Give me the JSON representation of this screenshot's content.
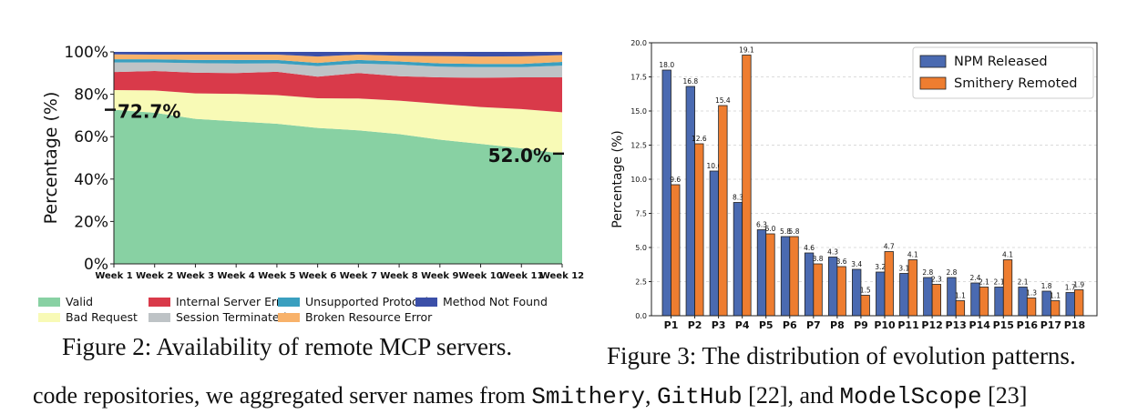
{
  "chart_data": [
    {
      "type": "area",
      "stacked": true,
      "categories": [
        "Week 1",
        "Week 2",
        "Week 3",
        "Week 4",
        "Week 5",
        "Week 6",
        "Week 7",
        "Week 8",
        "Week 9",
        "Week 10",
        "Week 11",
        "Week 12"
      ],
      "series": [
        {
          "name": "Valid",
          "color": "#88d1a3",
          "values": [
            72.7,
            71.3,
            68.4,
            67.2,
            66.1,
            64.1,
            63.0,
            61.2,
            58.6,
            56.6,
            54.5,
            52.0
          ]
        },
        {
          "name": "Bad Request",
          "color": "#f8fab6",
          "values": [
            9.3,
            10.5,
            12.0,
            13.0,
            13.5,
            14.0,
            15.0,
            15.8,
            16.9,
            17.4,
            18.5,
            19.5
          ]
        },
        {
          "name": "Internal Server Error",
          "color": "#d93a4a",
          "values": [
            8.5,
            9.2,
            9.8,
            9.8,
            11.0,
            10.2,
            12.0,
            11.5,
            12.5,
            13.8,
            15.0,
            16.5
          ]
        },
        {
          "name": "Session Terminated",
          "color": "#bec3c6",
          "values": [
            4.5,
            4.0,
            4.5,
            4.5,
            4.0,
            5.0,
            4.5,
            5.5,
            5.0,
            5.0,
            4.8,
            5.5
          ]
        },
        {
          "name": "Unsupported Protocol",
          "color": "#3a9fbf",
          "values": [
            1.5,
            1.5,
            1.5,
            1.7,
            1.6,
            1.5,
            1.7,
            1.5,
            1.6,
            1.5,
            1.5,
            1.8
          ]
        },
        {
          "name": "Broken Resource Error",
          "color": "#f8b26a",
          "values": [
            2.3,
            2.2,
            2.5,
            2.5,
            2.5,
            3.0,
            2.5,
            2.7,
            3.4,
            3.5,
            3.6,
            3.2
          ]
        },
        {
          "name": "Method Not Found",
          "color": "#3b4fa8",
          "values": [
            1.2,
            1.3,
            1.3,
            1.3,
            1.3,
            2.2,
            1.3,
            1.8,
            2.0,
            2.2,
            2.1,
            1.5
          ]
        }
      ],
      "xlabel": "",
      "ylabel": "Percentage (%)",
      "ylim": [
        0,
        100
      ],
      "ytick_labels": [
        "0%",
        "20%",
        "40%",
        "60%",
        "80%",
        "100%"
      ],
      "annotations": [
        {
          "category": "Week 1",
          "value": 72.7,
          "label": "72.7%"
        },
        {
          "category": "Week 12",
          "value": 52.0,
          "label": "52.0%"
        }
      ],
      "legend": "bottom",
      "grid": false
    },
    {
      "type": "bar",
      "categories": [
        "P1",
        "P2",
        "P3",
        "P4",
        "P5",
        "P6",
        "P7",
        "P8",
        "P9",
        "P10",
        "P11",
        "P12",
        "P13",
        "P14",
        "P15",
        "P16",
        "P17",
        "P18"
      ],
      "series": [
        {
          "name": "NPM Released",
          "color": "#4a6ab1",
          "values": [
            18.0,
            16.8,
            10.6,
            8.3,
            6.3,
            5.8,
            4.6,
            4.3,
            3.4,
            3.2,
            3.1,
            2.8,
            2.8,
            2.4,
            2.1,
            2.1,
            1.8,
            1.7
          ]
        },
        {
          "name": "Smithery Remoted",
          "color": "#ee7d30",
          "values": [
            9.6,
            12.6,
            15.4,
            19.1,
            6.0,
            5.8,
            3.8,
            3.6,
            1.5,
            4.7,
            4.1,
            2.3,
            1.1,
            2.1,
            4.1,
            1.3,
            1.1,
            1.9
          ]
        }
      ],
      "data_labels": {
        "NPM Released": [
          "18.0",
          "16.8",
          "10.6",
          "8.3",
          "6.3",
          "5.8",
          "4.6",
          "4.3",
          "3.4",
          "3.2",
          "3.1",
          "2.8",
          "2.8",
          "2.4",
          "2.1",
          "2.1",
          "1.8",
          "1.7"
        ],
        "Smithery Remoted": [
          "9.6",
          "12.6",
          "15.4",
          "19.1",
          "6.0",
          "5.8",
          "3.8",
          "3.6",
          "1.5",
          "4.7",
          "4.1",
          "2.3",
          "1.1",
          "2.1",
          "4.1",
          "1.3",
          "1.1",
          "1.9"
        ]
      },
      "xlabel": "",
      "ylabel": "Percentage (%)",
      "ylim": [
        0,
        20
      ],
      "ytick_labels": [
        "0.0",
        "2.5",
        "5.0",
        "7.5",
        "10.0",
        "12.5",
        "15.0",
        "17.5",
        "20.0"
      ],
      "legend": "top-right",
      "grid": true
    }
  ],
  "captions": {
    "fig2": "Figure 2: Availability of remote MCP servers.",
    "fig3": "Figure 3: The distribution of evolution patterns."
  },
  "body_text": {
    "t1": "code repositories, we aggregated server names from ",
    "c1": "Smithery",
    "t2": ", ",
    "c2": "GitHub",
    "t3": " [22], and ",
    "c3": "ModelScope",
    "t4": " [23]"
  }
}
